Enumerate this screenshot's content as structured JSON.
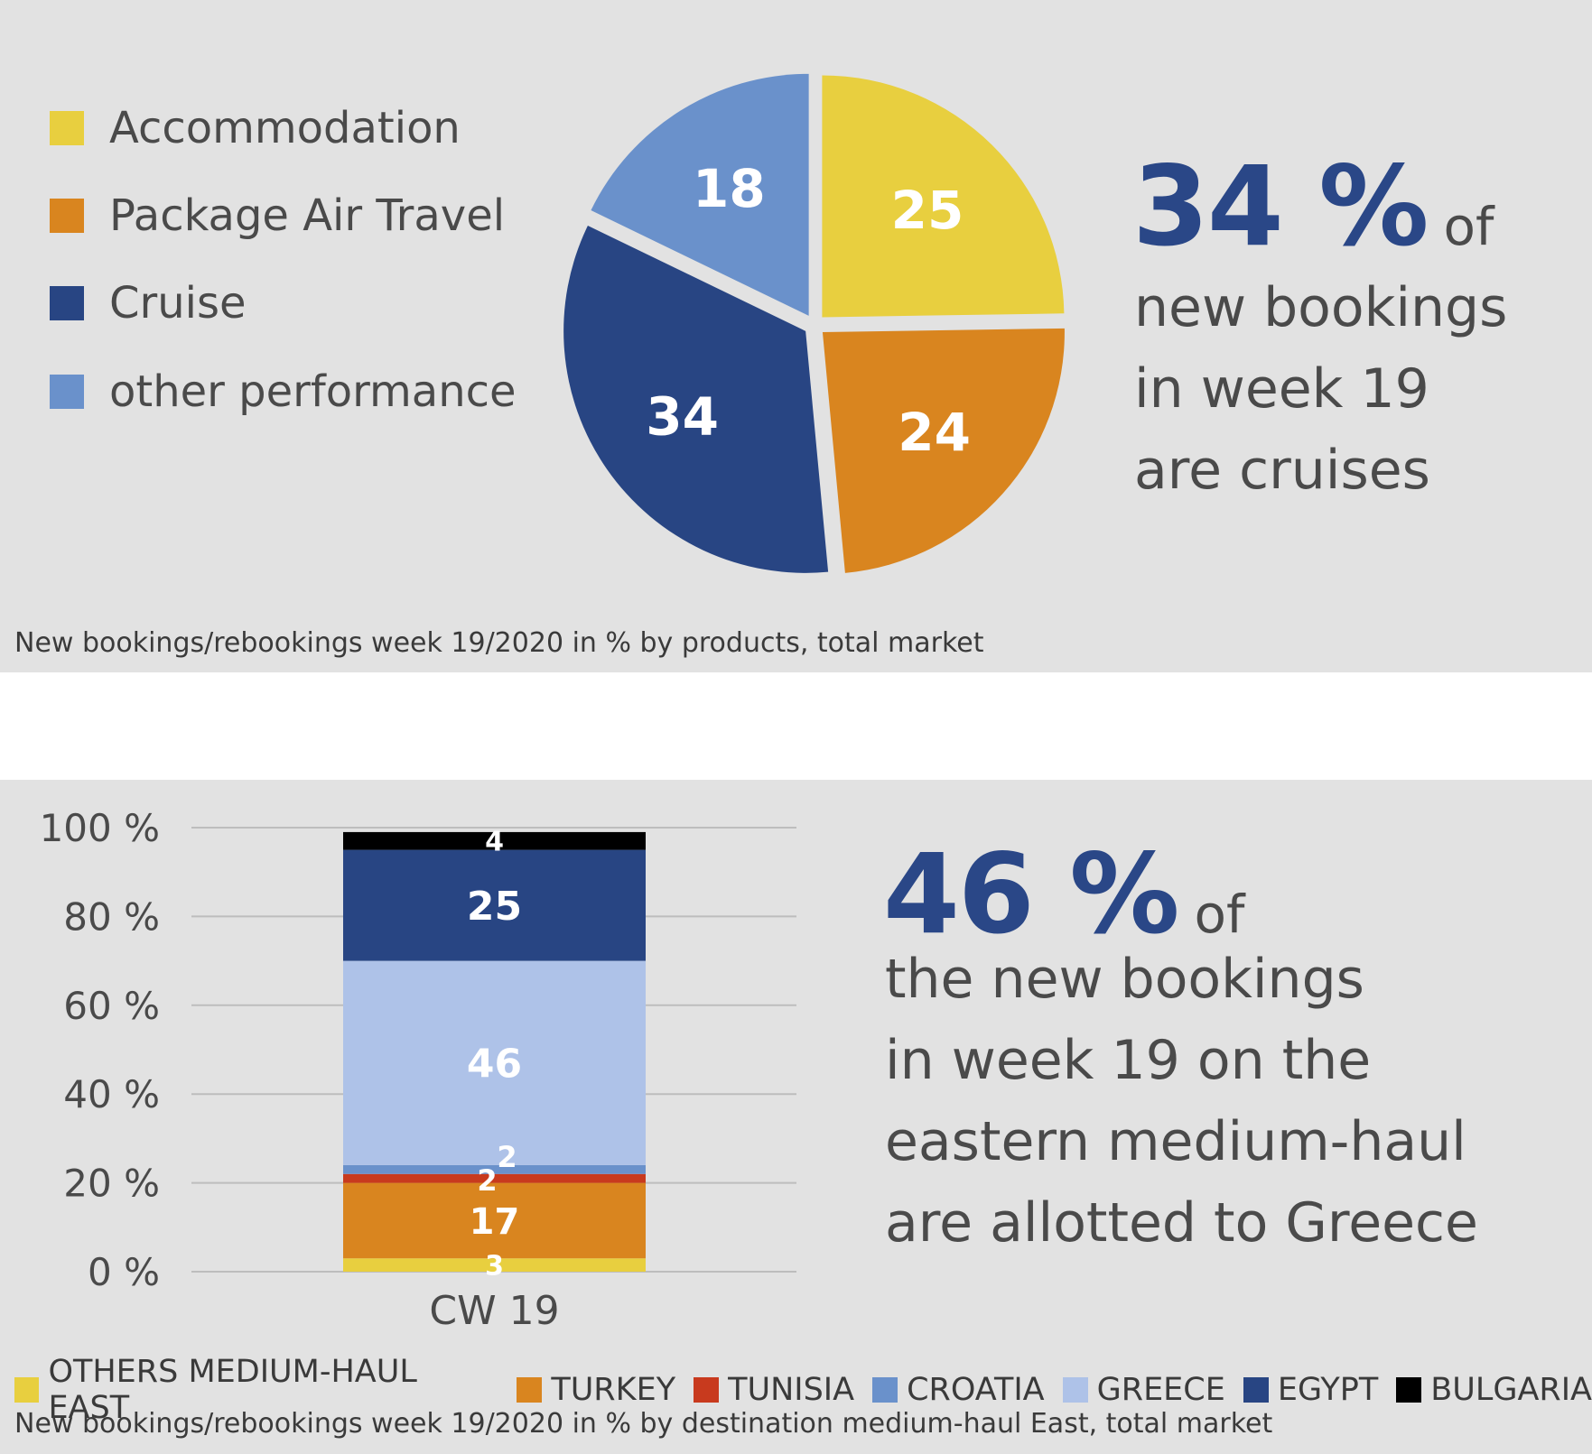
{
  "colors": {
    "accommodation": "#e8cf3f",
    "package_air": "#d9851f",
    "cruise": "#284583",
    "other_perf": "#6a91cb",
    "others_mhe": "#e8cf3f",
    "turkey": "#d9851f",
    "tunisia": "#c83a1e",
    "croatia": "#6a91cb",
    "greece": "#aec2e8",
    "egypt": "#284583",
    "bulgaria": "#000000",
    "highlight": "#2a4787"
  },
  "top": {
    "legend": [
      "Accommodation",
      "Package Air Travel",
      "Cruise",
      "other performance"
    ],
    "headline_number": "34 %",
    "headline_of": "of",
    "headline_lines": [
      "new bookings",
      "in week 19",
      "are cruises"
    ],
    "caption": "New bookings/rebookings week 19/2020 in % by products, total market"
  },
  "bottom": {
    "headline_number": "46 %",
    "headline_of": "of",
    "headline_lines": [
      "the new bookings",
      "in week 19 on the",
      "eastern medium-haul",
      "are allotted to Greece"
    ],
    "legend": [
      "OTHERS MEDIUM-HAUL EAST",
      "TURKEY",
      "TUNISIA",
      "CROATIA",
      "GREECE",
      "EGYPT",
      "BULGARIA"
    ],
    "caption": "New bookings/rebookings week 19/2020 in % by destination medium-haul East, total market"
  },
  "chart_data": [
    {
      "type": "pie",
      "labels": [
        "Accommodation",
        "Package Air Travel",
        "Cruise",
        "other performance"
      ],
      "values": [
        25,
        24,
        34,
        18
      ],
      "data_labels": [
        "25",
        "24",
        "34",
        "18"
      ],
      "legend_position": "left"
    },
    {
      "type": "bar",
      "stacked": true,
      "categories": [
        "CW 19"
      ],
      "series": [
        {
          "name": "OTHERS MEDIUM-HAUL EAST",
          "values": [
            3
          ]
        },
        {
          "name": "TURKEY",
          "values": [
            17
          ]
        },
        {
          "name": "TUNISIA",
          "values": [
            2
          ]
        },
        {
          "name": "CROATIA",
          "values": [
            2
          ]
        },
        {
          "name": "GREECE",
          "values": [
            46
          ]
        },
        {
          "name": "EGYPT",
          "values": [
            25
          ]
        },
        {
          "name": "BULGARIA",
          "values": [
            4
          ]
        }
      ],
      "ylim": [
        0,
        100
      ],
      "yticks": [
        "0 %",
        "20 %",
        "40 %",
        "60 %",
        "80 %",
        "100 %"
      ],
      "grid": true,
      "legend_position": "bottom"
    }
  ]
}
